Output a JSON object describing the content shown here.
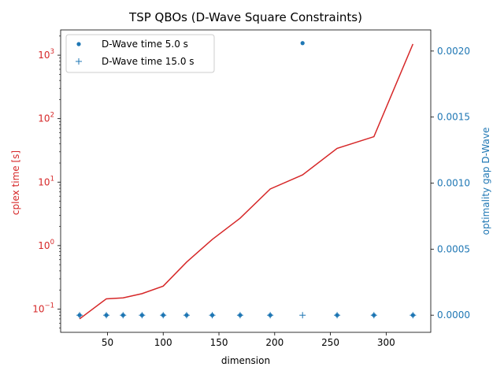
{
  "chart_data": {
    "type": "line",
    "title": "TSP QBOs (D-Wave Square Constraints)",
    "xlabel": "dimension",
    "ylabel_left": "cplex time [s]",
    "ylabel_right": "optimality gap D-Wave",
    "xlim": [
      8,
      340
    ],
    "ylim_left": [
      0.043,
      2500
    ],
    "ylim_left_scale": "log",
    "ylim_right": [
      -0.00013,
      0.00216
    ],
    "x_ticks": [
      50,
      100,
      150,
      200,
      250,
      300
    ],
    "y_left_ticks": [
      {
        "value": 0.1,
        "mant": "10",
        "exp": "−1"
      },
      {
        "value": 1,
        "mant": "10",
        "exp": "0"
      },
      {
        "value": 10,
        "mant": "10",
        "exp": "1"
      },
      {
        "value": 100,
        "mant": "10",
        "exp": "2"
      },
      {
        "value": 1000,
        "mant": "10",
        "exp": "3"
      }
    ],
    "y_right_ticks": [
      "0.0000",
      "0.0005",
      "0.0010",
      "0.0015",
      "0.0020"
    ],
    "colors": {
      "left_axis": "#d62728",
      "right_axis": "#1f77b4"
    },
    "legend_position": "top-left",
    "cplex_series": {
      "name": "cplex time",
      "x": [
        25,
        49,
        64,
        81,
        100,
        121,
        144,
        169,
        196,
        225,
        256,
        289,
        324
      ],
      "y": [
        0.07,
        0.145,
        0.15,
        0.175,
        0.23,
        0.55,
        1.25,
        2.7,
        7.8,
        13,
        34,
        52,
        1500
      ]
    },
    "series": [
      {
        "name": "D-Wave time 5.0 s",
        "marker": "dot",
        "x": [
          25,
          49,
          64,
          81,
          100,
          121,
          144,
          169,
          196,
          225,
          256,
          289,
          324
        ],
        "y": [
          0,
          0,
          0,
          0,
          0,
          0,
          0,
          0,
          0,
          0.00206,
          0,
          0,
          0
        ]
      },
      {
        "name": "D-Wave time 15.0 s",
        "marker": "plus",
        "x": [
          25,
          49,
          64,
          81,
          100,
          121,
          144,
          169,
          196,
          225,
          256,
          289,
          324
        ],
        "y": [
          0,
          0,
          0,
          0,
          0,
          0,
          0,
          0,
          0,
          0,
          0,
          0,
          0
        ]
      }
    ]
  }
}
